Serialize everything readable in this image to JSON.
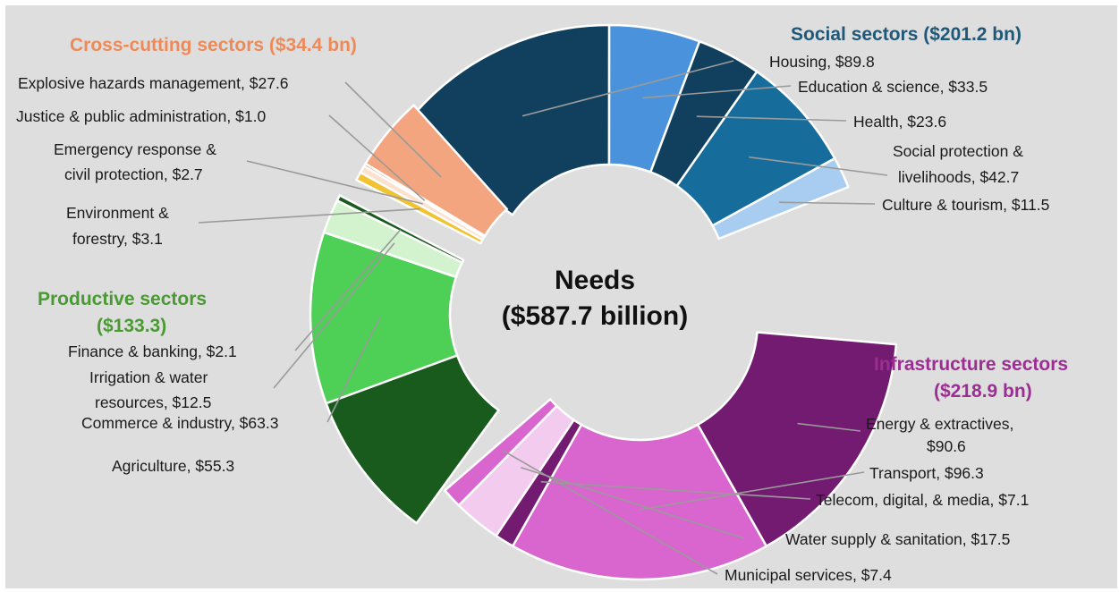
{
  "chart_data": {
    "type": "pie",
    "center_title": "Needs",
    "center_value": "($587.7 billion)",
    "groups": [
      {
        "id": "social",
        "title": "Social sectors ($201.2 bn)",
        "total": 201.2,
        "color": "#1f5878",
        "sectors": [
          {
            "label": "Housing, $89.8",
            "value": 89.8,
            "color": "#11405e"
          },
          {
            "label": "Education & science, $33.5",
            "value": 33.5,
            "color": "#4a93dc"
          },
          {
            "label": "Health, $23.6",
            "value": 23.6,
            "color": "#11405e"
          },
          {
            "label": "Social protection & livelihoods, $42.7",
            "line1": "Social protection &",
            "line2": "livelihoods, $42.7",
            "value": 42.7,
            "color": "#166d9c"
          },
          {
            "label": "Culture & tourism, $11.5",
            "value": 11.5,
            "color": "#a9cdf0"
          }
        ]
      },
      {
        "id": "infrastructure",
        "title_line1": "Infrastructure sectors",
        "title_line2": "($218.9 bn)",
        "total": 218.9,
        "color": "#9b2e92",
        "sectors": [
          {
            "label": "Energy & extractives, $90.6",
            "line1": "Energy & extractives,",
            "line2": "$90.6",
            "value": 90.6,
            "color": "#731b71"
          },
          {
            "label": "Transport, $96.3",
            "value": 96.3,
            "color": "#d866ce"
          },
          {
            "label": "Telecom, digital, & media, $7.1",
            "value": 7.1,
            "color": "#731b71"
          },
          {
            "label": "Water supply & sanitation, $17.5",
            "value": 17.5,
            "color": "#f2cbef"
          },
          {
            "label": "Municipal services, $7.4",
            "value": 7.4,
            "color": "#d866ce"
          }
        ]
      },
      {
        "id": "productive",
        "title_line1": "Productive sectors",
        "title_line2": "($133.3)",
        "total": 133.3,
        "color": "#4a9a33",
        "sectors": [
          {
            "label": "Agriculture, $55.3",
            "value": 55.3,
            "color": "#185b1c"
          },
          {
            "label": "Commerce & industry, $63.3",
            "value": 63.3,
            "color": "#4ecf55"
          },
          {
            "label": "Irrigation & water resources, $12.5",
            "line1": "Irrigation & water",
            "line2": "resources, $12.5",
            "value": 12.5,
            "color": "#d3f3cf"
          },
          {
            "label": "Finance & banking, $2.1",
            "value": 2.1,
            "color": "#185b1c"
          }
        ]
      },
      {
        "id": "crosscutting",
        "title": "Cross-cutting sectors ($34.4 bn)",
        "total": 34.4,
        "color": "#ed8a58",
        "sectors": [
          {
            "label": "Environment & forestry, $3.1",
            "line1": "Environment &",
            "line2": "forestry, $3.1",
            "value": 3.1,
            "color": "#f1c232"
          },
          {
            "label": "Emergency response & civil protection, $2.7",
            "line1": "Emergency response &",
            "line2": "civil protection, $2.7",
            "value": 2.7,
            "color": "#fbe2cf"
          },
          {
            "label": "Justice & public administration, $1.0",
            "value": 1.0,
            "color": "#b45f06"
          },
          {
            "label": "Explosive hazards management, $27.6",
            "value": 27.6,
            "color": "#f2a57e"
          }
        ]
      }
    ]
  }
}
